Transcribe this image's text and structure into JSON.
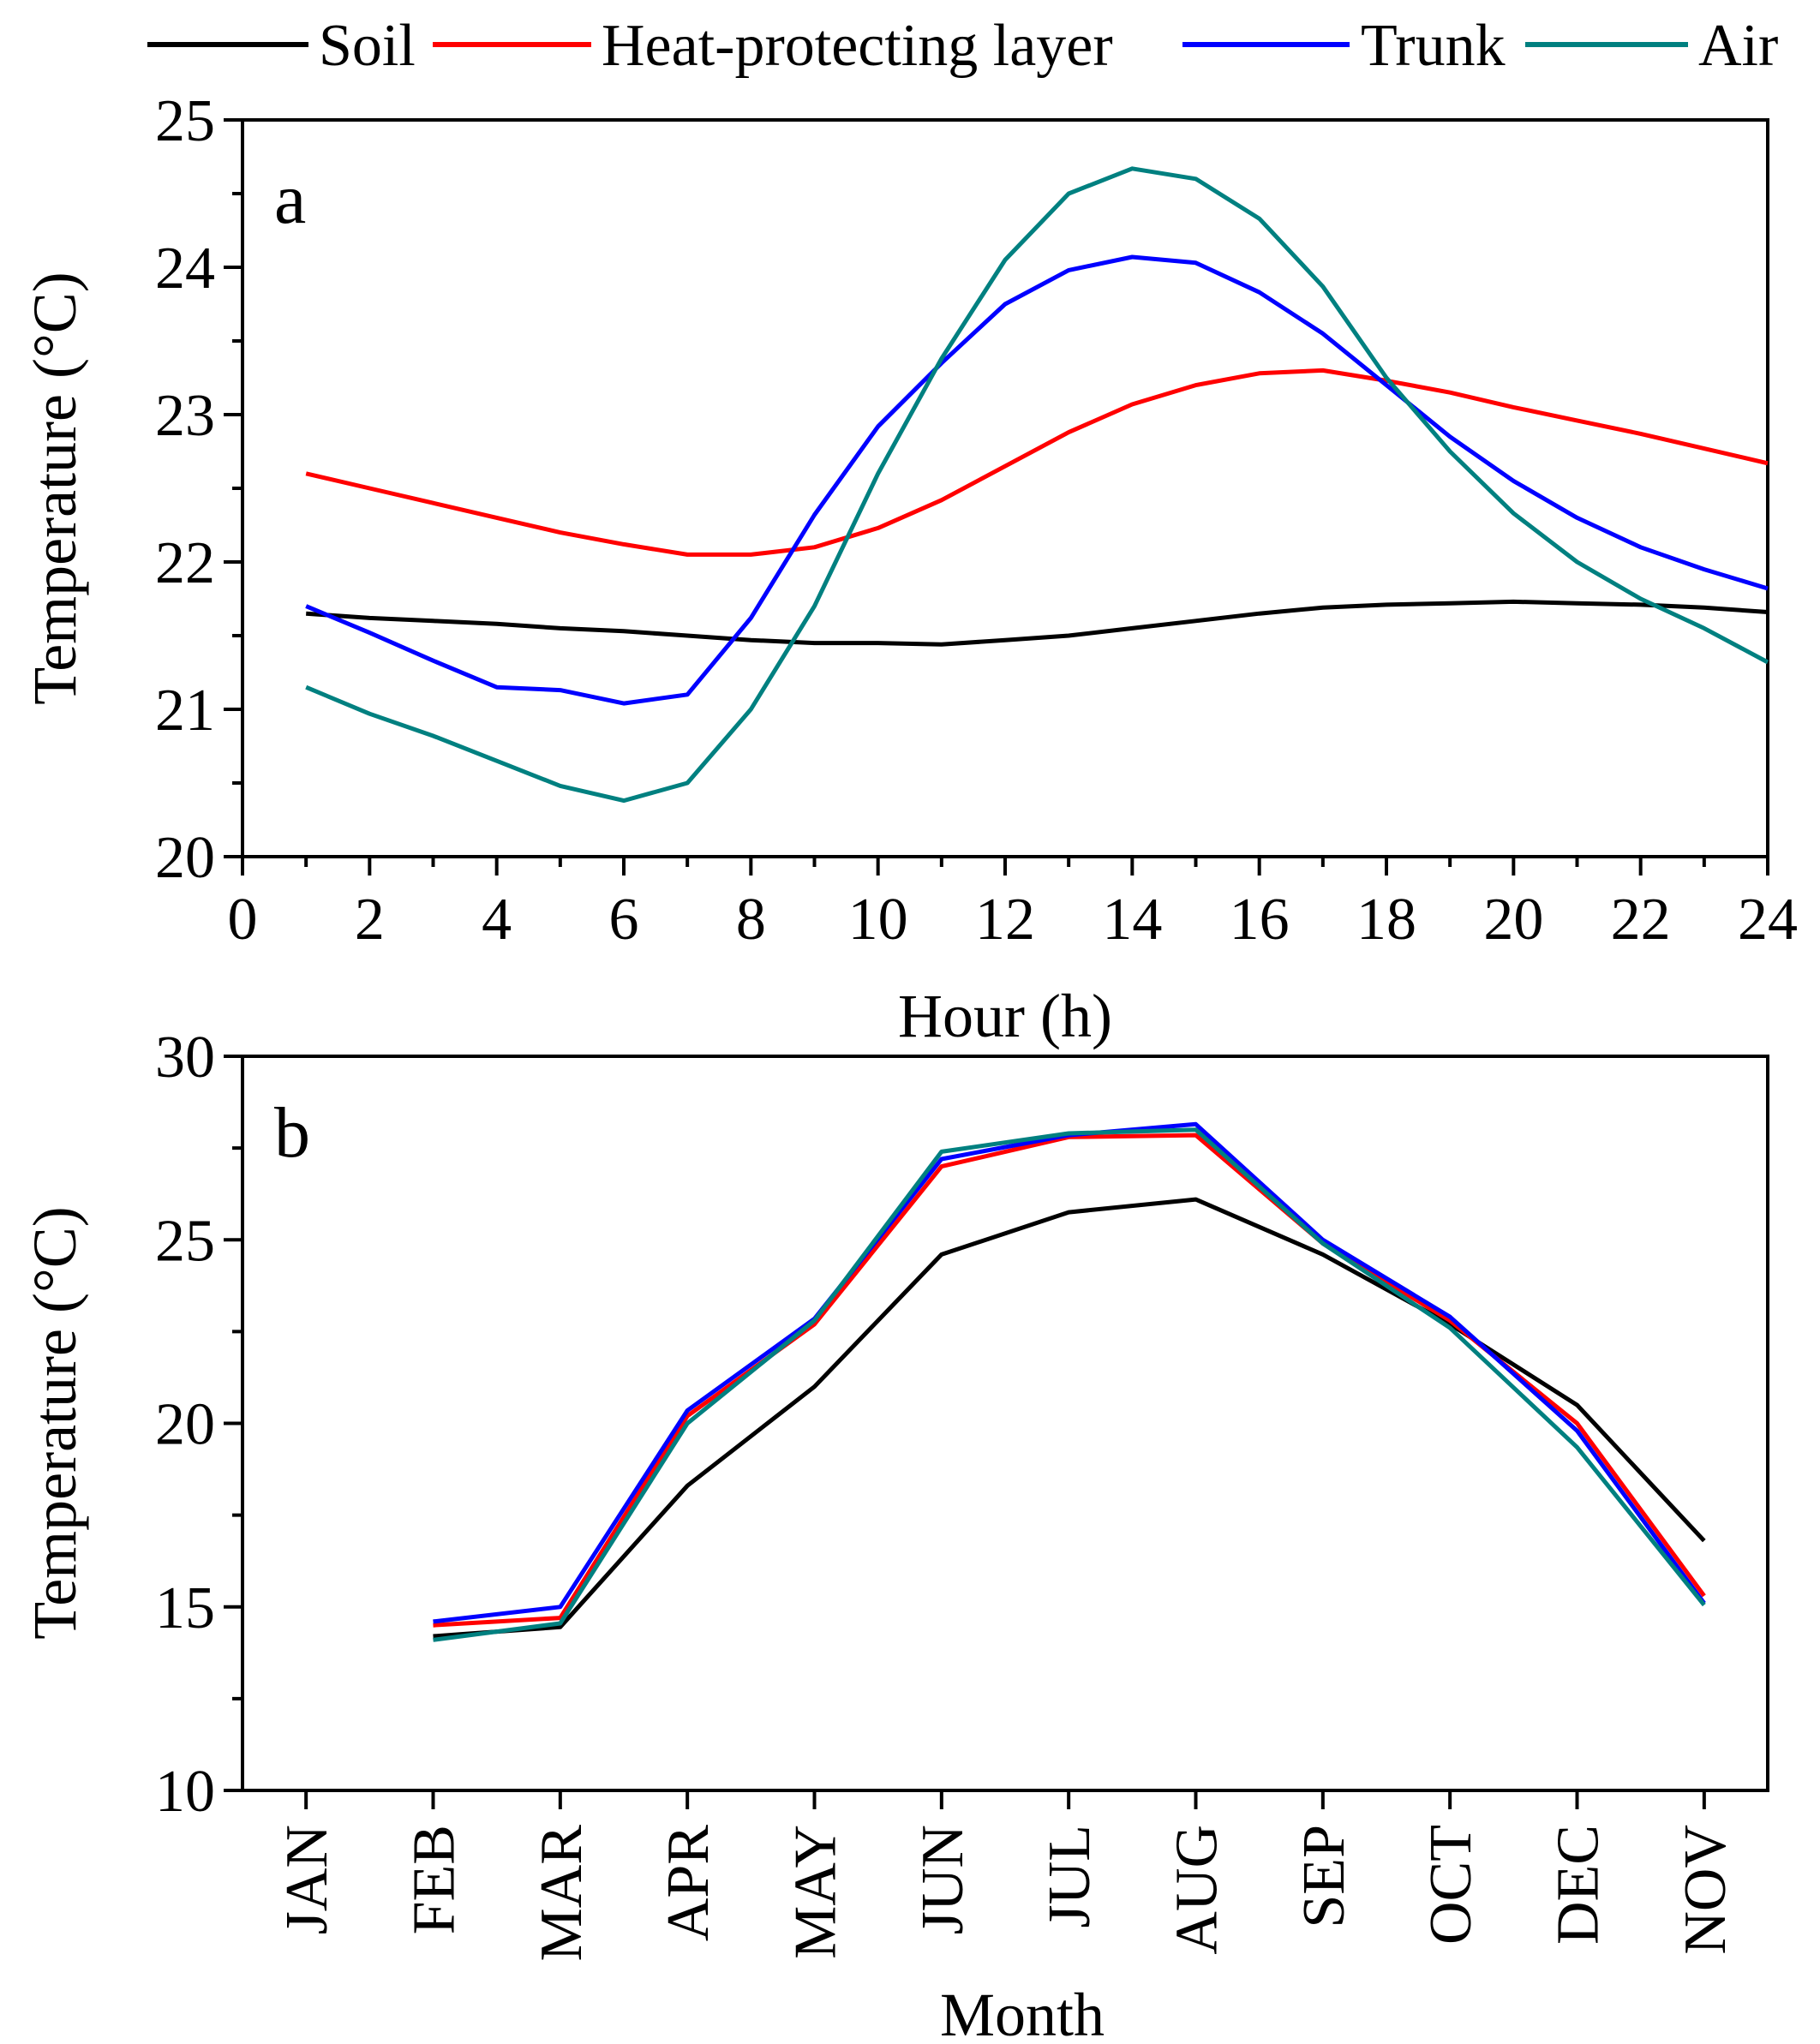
{
  "legend": [
    {
      "name": "Soil",
      "color": "#000000"
    },
    {
      "name": "Heat-protecting layer",
      "color": "#ff0000"
    },
    {
      "name": "Trunk",
      "color": "#0000ff"
    },
    {
      "name": "Air",
      "color": "#008080"
    }
  ],
  "chart_data": [
    {
      "type": "line",
      "panel_label": "a",
      "xlabel": "Hour (h)",
      "ylabel": "Temperature (°C)",
      "xlim": [
        0,
        24
      ],
      "ylim": [
        20,
        25
      ],
      "xticks": [
        0,
        2,
        4,
        6,
        8,
        10,
        12,
        14,
        16,
        18,
        20,
        22,
        24
      ],
      "yticks": [
        20,
        21,
        22,
        23,
        24,
        25
      ],
      "x": [
        1,
        2,
        3,
        4,
        5,
        6,
        7,
        8,
        9,
        10,
        11,
        12,
        13,
        14,
        15,
        16,
        17,
        18,
        19,
        20,
        21,
        22,
        23,
        24
      ],
      "series": [
        {
          "name": "Soil",
          "color": "#000000",
          "values": [
            21.65,
            21.62,
            21.6,
            21.58,
            21.55,
            21.53,
            21.5,
            21.47,
            21.45,
            21.45,
            21.44,
            21.47,
            21.5,
            21.55,
            21.6,
            21.65,
            21.69,
            21.71,
            21.72,
            21.73,
            21.72,
            21.71,
            21.69,
            21.66
          ]
        },
        {
          "name": "Heat-protecting layer",
          "color": "#ff0000",
          "values": [
            22.6,
            22.5,
            22.4,
            22.3,
            22.2,
            22.12,
            22.05,
            22.05,
            22.1,
            22.23,
            22.42,
            22.65,
            22.88,
            23.07,
            23.2,
            23.28,
            23.3,
            23.23,
            23.15,
            23.05,
            22.96,
            22.87,
            22.77,
            22.67
          ]
        },
        {
          "name": "Trunk",
          "color": "#0000ff",
          "values": [
            21.7,
            21.52,
            21.33,
            21.15,
            21.13,
            21.04,
            21.1,
            21.62,
            22.32,
            22.92,
            23.35,
            23.75,
            23.98,
            24.07,
            24.03,
            23.83,
            23.55,
            23.2,
            22.85,
            22.55,
            22.3,
            22.1,
            21.95,
            21.82
          ]
        },
        {
          "name": "Air",
          "color": "#008080",
          "values": [
            21.15,
            20.97,
            20.82,
            20.65,
            20.48,
            20.38,
            20.5,
            21.0,
            21.7,
            22.6,
            23.38,
            24.05,
            24.5,
            24.67,
            24.6,
            24.33,
            23.87,
            23.25,
            22.75,
            22.33,
            22.0,
            21.75,
            21.55,
            21.32
          ]
        }
      ]
    },
    {
      "type": "line",
      "panel_label": "b",
      "xlabel": "Month",
      "ylabel": "Temperature (°C)",
      "ylim": [
        10,
        30
      ],
      "yticks": [
        10,
        15,
        20,
        25,
        30
      ],
      "categories": [
        "JAN",
        "FEB",
        "MAR",
        "APR",
        "MAY",
        "JUN",
        "JUL",
        "AUG",
        "SEP",
        "OCT",
        "DEC",
        "NOV"
      ],
      "series": [
        {
          "name": "Soil",
          "color": "#000000",
          "values": [
            null,
            14.2,
            14.45,
            18.3,
            21.0,
            24.6,
            25.75,
            26.1,
            24.6,
            22.7,
            20.5,
            16.8
          ]
        },
        {
          "name": "Heat-protecting layer",
          "color": "#ff0000",
          "values": [
            null,
            14.5,
            14.7,
            20.2,
            22.7,
            27.0,
            27.8,
            27.85,
            24.9,
            22.8,
            20.0,
            15.3
          ]
        },
        {
          "name": "Trunk",
          "color": "#0000ff",
          "values": [
            null,
            14.6,
            15.0,
            20.35,
            22.85,
            27.2,
            27.85,
            28.15,
            25.0,
            22.9,
            19.8,
            15.1
          ]
        },
        {
          "name": "Air",
          "color": "#008080",
          "values": [
            null,
            14.1,
            14.55,
            20.0,
            22.8,
            27.4,
            27.9,
            28.0,
            24.9,
            22.6,
            19.35,
            15.05
          ]
        }
      ]
    }
  ]
}
